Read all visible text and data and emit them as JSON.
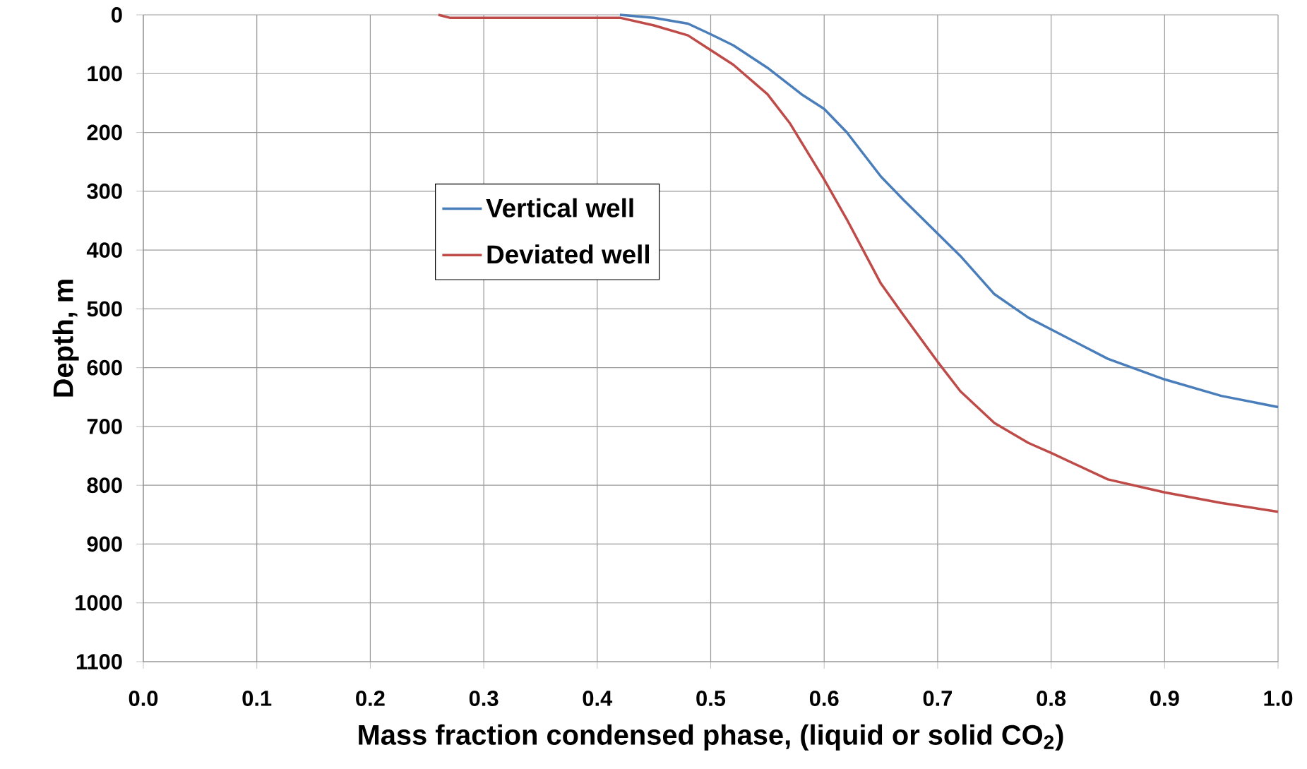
{
  "chart_data": {
    "type": "line",
    "xlabel": "Mass fraction condensed phase, (liquid or solid CO$_{2}$)",
    "ylabel": "Depth, m",
    "xlim": [
      0,
      1
    ],
    "ylim": [
      1100,
      0
    ],
    "xticks": [
      {
        "value": 0,
        "label": "0.0"
      },
      0.1,
      0.2,
      0.3,
      0.4,
      0.5,
      0.6,
      0.7,
      0.8,
      0.9,
      {
        "value": 1,
        "label": "1.0"
      }
    ],
    "yticks": [
      0,
      100,
      200,
      300,
      400,
      500,
      600,
      700,
      800,
      900,
      1000,
      1100
    ],
    "grid": true,
    "legend": "top left",
    "line_style": "solid",
    "marker": "none",
    "series": [
      {
        "name": "Vertical well",
        "color": "#4a7ebb",
        "x": [
          0.42,
          0.45,
          0.48,
          0.5,
          0.52,
          0.55,
          0.58,
          0.6,
          0.62,
          0.65,
          0.67,
          0.7,
          0.72,
          0.75,
          0.78,
          0.8,
          0.85,
          0.9,
          0.95,
          1.0
        ],
        "values": [
          0,
          5,
          15,
          33,
          52,
          90,
          135,
          160,
          200,
          275,
          315,
          372,
          410,
          475,
          515,
          535,
          585,
          620,
          648,
          667
        ]
      },
      {
        "name": "Deviated well",
        "color": "#be4b48",
        "x": [
          0.26,
          0.27,
          0.42,
          0.45,
          0.48,
          0.5,
          0.52,
          0.55,
          0.57,
          0.6,
          0.62,
          0.65,
          0.67,
          0.7,
          0.72,
          0.75,
          0.78,
          0.8,
          0.85,
          0.9,
          0.95,
          1.0
        ],
        "values": [
          0,
          5,
          5,
          18,
          35,
          60,
          85,
          135,
          185,
          280,
          348,
          457,
          511,
          590,
          640,
          694,
          728,
          745,
          790,
          812,
          830,
          845
        ]
      }
    ]
  }
}
